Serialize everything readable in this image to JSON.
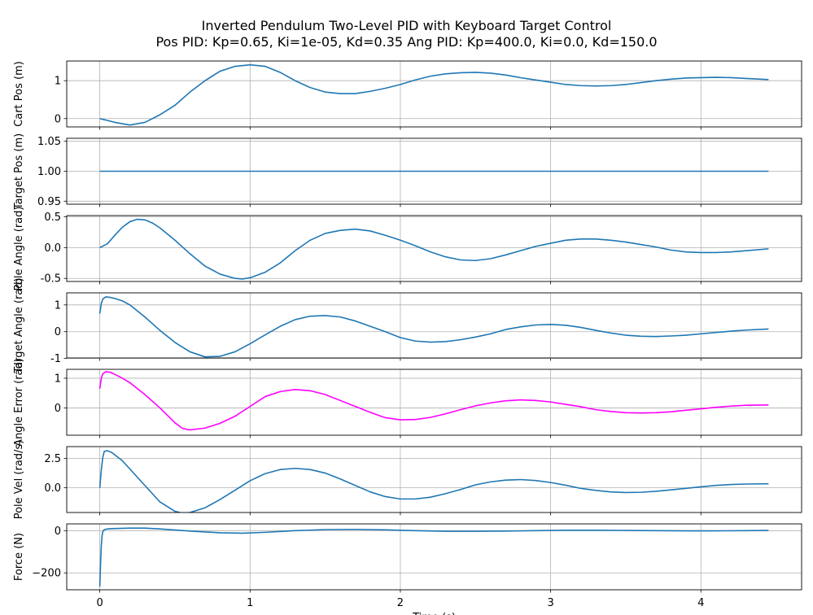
{
  "title": {
    "line1": "Inverted Pendulum Two-Level PID with Keyboard Target Control",
    "line2": "Pos PID: Kp=0.65, Ki=1e-05, Kd=0.35    Ang PID: Kp=400.0, Ki=0.0, Kd=150.0"
  },
  "colors": {
    "series": "#1f77b4",
    "error_series": "#ff00ff",
    "grid": "#b0b0b0",
    "axes": "#000000"
  },
  "shared_x_axis": {
    "xlim": [
      -0.22,
      4.67
    ],
    "ticks": [
      0,
      1,
      2,
      3,
      4
    ],
    "tick_labels": [
      "0",
      "1",
      "2",
      "3",
      "4"
    ]
  },
  "chart_data": [
    {
      "type": "line",
      "ylabel": "Cart Pos (m)",
      "ylim": [
        -0.22,
        1.52
      ],
      "yticks": [
        0,
        1
      ],
      "ytick_labels": [
        "0",
        "1"
      ],
      "grid": true,
      "color": "#1f77b4",
      "series": [
        {
          "x": [
            0,
            0.1,
            0.2,
            0.3,
            0.4,
            0.5,
            0.6,
            0.7,
            0.8,
            0.9,
            1.0,
            1.1,
            1.2,
            1.3,
            1.4,
            1.5,
            1.6,
            1.7,
            1.8,
            1.9,
            2.0,
            2.1,
            2.2,
            2.3,
            2.4,
            2.5,
            2.6,
            2.7,
            2.8,
            2.9,
            3.0,
            3.1,
            3.2,
            3.3,
            3.4,
            3.5,
            3.6,
            3.7,
            3.8,
            3.9,
            4.0,
            4.1,
            4.2,
            4.3,
            4.45
          ],
          "y": [
            0.0,
            -0.1,
            -0.17,
            -0.1,
            0.1,
            0.35,
            0.7,
            1.0,
            1.25,
            1.38,
            1.42,
            1.38,
            1.22,
            1.0,
            0.82,
            0.7,
            0.66,
            0.66,
            0.72,
            0.8,
            0.9,
            1.02,
            1.12,
            1.18,
            1.21,
            1.22,
            1.2,
            1.15,
            1.08,
            1.02,
            0.96,
            0.9,
            0.87,
            0.86,
            0.87,
            0.9,
            0.95,
            1.0,
            1.04,
            1.07,
            1.08,
            1.09,
            1.08,
            1.06,
            1.03
          ]
        }
      ]
    },
    {
      "type": "line",
      "ylabel": "Target Pos (m)",
      "ylim": [
        0.945,
        1.055
      ],
      "yticks": [
        0.95,
        1.0,
        1.05
      ],
      "ytick_labels": [
        "0.95",
        "1.00",
        "1.05"
      ],
      "grid": true,
      "color": "#1f77b4",
      "series": [
        {
          "x": [
            0,
            4.45
          ],
          "y": [
            1.0,
            1.0
          ]
        }
      ]
    },
    {
      "type": "line",
      "ylabel": "Pole Angle (rad)",
      "ylim": [
        -0.55,
        0.52
      ],
      "yticks": [
        -0.5,
        0.0,
        0.5
      ],
      "ytick_labels": [
        "-0.5",
        "0.0",
        "0.5"
      ],
      "grid": true,
      "color": "#1f77b4",
      "series": [
        {
          "x": [
            0,
            0.05,
            0.1,
            0.15,
            0.2,
            0.25,
            0.3,
            0.35,
            0.4,
            0.5,
            0.6,
            0.7,
            0.8,
            0.9,
            0.95,
            1.0,
            1.1,
            1.2,
            1.3,
            1.4,
            1.5,
            1.6,
            1.7,
            1.8,
            1.9,
            2.0,
            2.1,
            2.2,
            2.3,
            2.4,
            2.5,
            2.6,
            2.7,
            2.8,
            2.9,
            3.0,
            3.1,
            3.2,
            3.3,
            3.4,
            3.5,
            3.6,
            3.7,
            3.8,
            3.9,
            4.0,
            4.1,
            4.2,
            4.3,
            4.45
          ],
          "y": [
            0.0,
            0.06,
            0.2,
            0.33,
            0.42,
            0.46,
            0.45,
            0.4,
            0.32,
            0.12,
            -0.1,
            -0.3,
            -0.43,
            -0.5,
            -0.51,
            -0.49,
            -0.4,
            -0.25,
            -0.05,
            0.12,
            0.23,
            0.28,
            0.3,
            0.27,
            0.2,
            0.12,
            0.03,
            -0.07,
            -0.15,
            -0.2,
            -0.21,
            -0.18,
            -0.12,
            -0.05,
            0.02,
            0.07,
            0.12,
            0.14,
            0.14,
            0.12,
            0.09,
            0.05,
            0.01,
            -0.04,
            -0.07,
            -0.08,
            -0.08,
            -0.07,
            -0.05,
            -0.02
          ]
        }
      ]
    },
    {
      "type": "line",
      "ylabel": "Target Angle (rad)",
      "ylim": [
        -0.98,
        1.45
      ],
      "yticks": [
        -1,
        0,
        1
      ],
      "ytick_labels": [
        "-1",
        "0",
        "1"
      ],
      "grid": true,
      "color": "#1f77b4",
      "series": [
        {
          "x": [
            0,
            0.01,
            0.02,
            0.04,
            0.07,
            0.1,
            0.15,
            0.2,
            0.3,
            0.4,
            0.5,
            0.6,
            0.7,
            0.8,
            0.9,
            1.0,
            1.1,
            1.2,
            1.3,
            1.4,
            1.5,
            1.6,
            1.7,
            1.8,
            1.9,
            2.0,
            2.1,
            2.2,
            2.3,
            2.4,
            2.5,
            2.6,
            2.7,
            2.8,
            2.9,
            3.0,
            3.1,
            3.2,
            3.3,
            3.4,
            3.5,
            3.6,
            3.7,
            3.8,
            3.9,
            4.0,
            4.1,
            4.2,
            4.3,
            4.45
          ],
          "y": [
            0.68,
            1.05,
            1.22,
            1.3,
            1.28,
            1.24,
            1.15,
            1.0,
            0.55,
            0.05,
            -0.4,
            -0.75,
            -0.94,
            -0.92,
            -0.75,
            -0.45,
            -0.12,
            0.2,
            0.45,
            0.58,
            0.6,
            0.55,
            0.4,
            0.2,
            0.0,
            -0.22,
            -0.35,
            -0.39,
            -0.37,
            -0.3,
            -0.2,
            -0.08,
            0.08,
            0.18,
            0.25,
            0.27,
            0.24,
            0.16,
            0.05,
            -0.05,
            -0.13,
            -0.17,
            -0.18,
            -0.16,
            -0.13,
            -0.08,
            -0.03,
            0.02,
            0.06,
            0.1
          ]
        }
      ]
    },
    {
      "type": "line",
      "ylabel": "Angle Error (rad)",
      "ylim": [
        -0.92,
        1.3
      ],
      "yticks": [
        0,
        1
      ],
      "ytick_labels": [
        "0",
        "1"
      ],
      "grid": true,
      "color": "#ff00ff",
      "series": [
        {
          "x": [
            0,
            0.01,
            0.02,
            0.04,
            0.07,
            0.1,
            0.15,
            0.2,
            0.3,
            0.4,
            0.5,
            0.55,
            0.6,
            0.7,
            0.8,
            0.9,
            1.0,
            1.1,
            1.2,
            1.3,
            1.4,
            1.5,
            1.6,
            1.7,
            1.8,
            1.9,
            2.0,
            2.1,
            2.2,
            2.3,
            2.4,
            2.5,
            2.6,
            2.7,
            2.8,
            2.9,
            3.0,
            3.1,
            3.2,
            3.3,
            3.4,
            3.5,
            3.6,
            3.7,
            3.8,
            3.9,
            4.0,
            4.1,
            4.2,
            4.3,
            4.45
          ],
          "y": [
            0.65,
            1.0,
            1.15,
            1.22,
            1.2,
            1.13,
            1.0,
            0.85,
            0.45,
            0.0,
            -0.5,
            -0.69,
            -0.74,
            -0.68,
            -0.52,
            -0.28,
            0.05,
            0.38,
            0.55,
            0.62,
            0.58,
            0.45,
            0.25,
            0.05,
            -0.15,
            -0.33,
            -0.4,
            -0.39,
            -0.32,
            -0.2,
            -0.06,
            0.07,
            0.17,
            0.24,
            0.27,
            0.25,
            0.2,
            0.12,
            0.04,
            -0.06,
            -0.12,
            -0.16,
            -0.17,
            -0.16,
            -0.13,
            -0.08,
            -0.03,
            0.02,
            0.06,
            0.09,
            0.1
          ]
        }
      ]
    },
    {
      "type": "line",
      "ylabel": "Pole Vel (rad/s)",
      "ylim": [
        -2.1,
        3.5
      ],
      "yticks": [
        0.0,
        2.5
      ],
      "ytick_labels": [
        "0.0",
        "2.5"
      ],
      "grid": true,
      "color": "#1f77b4",
      "series": [
        {
          "x": [
            0,
            0.01,
            0.02,
            0.03,
            0.05,
            0.08,
            0.1,
            0.15,
            0.2,
            0.3,
            0.4,
            0.5,
            0.55,
            0.6,
            0.7,
            0.8,
            0.9,
            1.0,
            1.1,
            1.2,
            1.3,
            1.4,
            1.5,
            1.6,
            1.7,
            1.8,
            1.9,
            2.0,
            2.1,
            2.2,
            2.3,
            2.4,
            2.5,
            2.6,
            2.7,
            2.8,
            2.9,
            3.0,
            3.1,
            3.2,
            3.3,
            3.4,
            3.5,
            3.6,
            3.7,
            3.8,
            3.9,
            4.0,
            4.1,
            4.2,
            4.3,
            4.45
          ],
          "y": [
            0.0,
            1.5,
            2.6,
            3.1,
            3.15,
            3.0,
            2.8,
            2.3,
            1.6,
            0.2,
            -1.2,
            -2.0,
            -2.15,
            -2.1,
            -1.7,
            -1.0,
            -0.2,
            0.6,
            1.2,
            1.55,
            1.65,
            1.55,
            1.25,
            0.75,
            0.2,
            -0.35,
            -0.75,
            -0.95,
            -0.95,
            -0.8,
            -0.5,
            -0.15,
            0.25,
            0.5,
            0.65,
            0.7,
            0.62,
            0.45,
            0.22,
            -0.05,
            -0.22,
            -0.35,
            -0.4,
            -0.38,
            -0.3,
            -0.18,
            -0.05,
            0.08,
            0.2,
            0.28,
            0.32,
            0.34
          ]
        }
      ]
    },
    {
      "type": "line",
      "ylabel": "Force (N)",
      "xlabel": "Time (s)",
      "ylim": [
        -280,
        32
      ],
      "yticks": [
        0,
        -200
      ],
      "ytick_labels": [
        "0",
        "−200"
      ],
      "grid": true,
      "color": "#1f77b4",
      "series": [
        {
          "x": [
            0,
            0.005,
            0.01,
            0.015,
            0.02,
            0.03,
            0.05,
            0.1,
            0.2,
            0.3,
            0.4,
            0.6,
            0.8,
            0.95,
            1.1,
            1.3,
            1.5,
            1.7,
            1.9,
            2.1,
            2.3,
            2.5,
            2.7,
            2.9,
            3.1,
            3.3,
            3.5,
            3.7,
            3.9,
            4.1,
            4.3,
            4.45
          ],
          "y": [
            -265,
            -160,
            -70,
            -25,
            -5,
            5,
            8,
            10,
            12,
            12,
            8,
            -2,
            -10,
            -12,
            -8,
            0,
            5,
            6,
            4,
            0,
            -3,
            -3,
            -2,
            0,
            2,
            2,
            1,
            0,
            -1,
            -1,
            0,
            1
          ]
        }
      ]
    }
  ]
}
